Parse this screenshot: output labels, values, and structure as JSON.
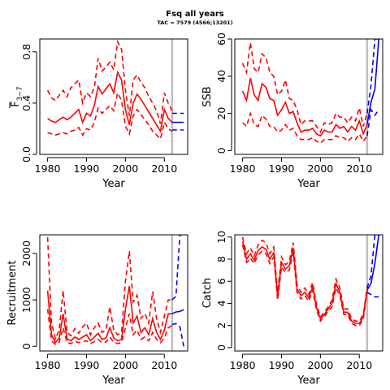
{
  "figure": {
    "title": "Fsq all years",
    "subtitle": "TAC = 7579 (4566;13201)"
  },
  "colors": {
    "hist": "#ff0000",
    "proj": "#0000ff",
    "vline": "#bebebe"
  },
  "assessment_year": 2012,
  "chart_data": [
    {
      "type": "line",
      "id": "fbar",
      "xlabel": "Year",
      "ylabel_main": "F",
      "ylabel_sub": "3−7",
      "xlim": [
        1978,
        2016
      ],
      "ylim": [
        0,
        0.9
      ],
      "xticks": [
        1980,
        1990,
        2000,
        2010
      ],
      "yticks": [
        0.0,
        0.4,
        0.8
      ],
      "ytick_labels": [
        "0.0",
        "0.4",
        "0.8"
      ],
      "years": [
        1980,
        1981,
        1982,
        1983,
        1984,
        1985,
        1986,
        1987,
        1988,
        1989,
        1990,
        1991,
        1992,
        1993,
        1994,
        1995,
        1996,
        1997,
        1998,
        1999,
        2000,
        2001,
        2002,
        2003,
        2004,
        2005,
        2006,
        2007,
        2008,
        2009,
        2010,
        2011,
        2012
      ],
      "median": [
        0.28,
        0.26,
        0.25,
        0.27,
        0.29,
        0.27,
        0.29,
        0.32,
        0.35,
        0.25,
        0.32,
        0.3,
        0.38,
        0.53,
        0.47,
        0.51,
        0.55,
        0.48,
        0.64,
        0.58,
        0.35,
        0.23,
        0.4,
        0.47,
        0.43,
        0.38,
        0.33,
        0.28,
        0.23,
        0.18,
        0.35,
        0.28,
        0.25
      ],
      "lower": [
        0.17,
        0.16,
        0.15,
        0.16,
        0.17,
        0.16,
        0.18,
        0.19,
        0.21,
        0.15,
        0.2,
        0.19,
        0.25,
        0.36,
        0.32,
        0.35,
        0.38,
        0.34,
        0.48,
        0.42,
        0.22,
        0.16,
        0.3,
        0.35,
        0.31,
        0.27,
        0.23,
        0.18,
        0.15,
        0.12,
        0.25,
        0.2,
        0.18
      ],
      "upper": [
        0.5,
        0.44,
        0.42,
        0.46,
        0.5,
        0.45,
        0.52,
        0.55,
        0.58,
        0.4,
        0.48,
        0.45,
        0.52,
        0.75,
        0.65,
        0.68,
        0.72,
        0.66,
        0.88,
        0.82,
        0.5,
        0.3,
        0.58,
        0.62,
        0.56,
        0.52,
        0.45,
        0.4,
        0.34,
        0.24,
        0.48,
        0.4,
        0.34
      ],
      "proj_years": [
        2012,
        2013,
        2014,
        2015
      ],
      "proj_median": [
        0.25,
        0.25,
        0.25,
        0.25
      ],
      "proj_lower": [
        0.19,
        0.19,
        0.19,
        0.19
      ],
      "proj_upper": [
        0.32,
        0.32,
        0.32,
        0.32
      ]
    },
    {
      "type": "line",
      "id": "ssb",
      "xlabel": "Year",
      "ylabel": "SSB",
      "xlim": [
        1978,
        2016
      ],
      "ylim": [
        -2,
        60
      ],
      "xticks": [
        1980,
        1990,
        2000,
        2010
      ],
      "yticks": [
        0,
        20,
        40,
        60
      ],
      "ytick_labels": [
        "0",
        "20",
        "40",
        "60"
      ],
      "years": [
        1980,
        1981,
        1982,
        1983,
        1984,
        1985,
        1986,
        1987,
        1988,
        1989,
        1990,
        1991,
        1992,
        1993,
        1994,
        1995,
        1996,
        1997,
        1998,
        1999,
        2000,
        2001,
        2002,
        2003,
        2004,
        2005,
        2006,
        2007,
        2008,
        2009,
        2010,
        2011,
        2012
      ],
      "median": [
        32,
        27,
        39,
        30,
        27,
        36,
        34,
        28,
        27,
        19,
        22,
        26,
        20,
        21,
        15,
        10,
        11,
        11,
        12,
        9,
        8,
        11,
        10,
        10,
        14,
        12,
        13,
        10,
        13,
        11,
        16,
        9,
        14
      ],
      "lower": [
        15,
        13,
        20,
        14,
        13,
        19,
        17,
        13,
        13,
        10,
        11,
        14,
        11,
        12,
        8,
        6,
        6,
        6,
        7,
        5,
        4,
        6,
        6,
        6,
        8,
        7,
        7,
        5,
        7,
        6,
        9,
        5,
        8
      ],
      "upper": [
        47,
        42,
        58,
        44,
        42,
        52,
        50,
        42,
        40,
        30,
        32,
        38,
        28,
        27,
        22,
        14,
        16,
        16,
        16,
        13,
        10,
        15,
        14,
        15,
        20,
        18,
        18,
        15,
        18,
        16,
        23,
        13,
        20
      ],
      "proj_years": [
        2012,
        2013,
        2014,
        2015
      ],
      "proj_median": [
        14,
        26,
        33,
        60
      ],
      "proj_lower": [
        8,
        22,
        19,
        22
      ],
      "proj_upper": [
        20,
        35,
        60,
        60
      ]
    },
    {
      "type": "line",
      "id": "recruitment",
      "xlabel": "Year",
      "ylabel": "Recruitment",
      "xlim": [
        1978,
        2016
      ],
      "ylim": [
        -100,
        2400
      ],
      "xticks": [
        1980,
        1990,
        2000,
        2010
      ],
      "yticks": [
        0,
        1000,
        2000
      ],
      "ytick_labels": [
        "0",
        "1000",
        "2000"
      ],
      "years": [
        1980,
        1981,
        1982,
        1983,
        1984,
        1985,
        1986,
        1987,
        1988,
        1989,
        1990,
        1991,
        1992,
        1993,
        1994,
        1995,
        1996,
        1997,
        1998,
        1999,
        2000,
        2001,
        2002,
        2003,
        2004,
        2005,
        2006,
        2007,
        2008,
        2009,
        2010,
        2011,
        2012
      ],
      "median": [
        1200,
        250,
        80,
        180,
        700,
        160,
        120,
        200,
        150,
        200,
        250,
        120,
        200,
        280,
        150,
        180,
        400,
        180,
        120,
        150,
        800,
        1300,
        500,
        650,
        300,
        400,
        250,
        600,
        300,
        150,
        350,
        700,
        700
      ],
      "lower": [
        800,
        120,
        40,
        100,
        400,
        80,
        60,
        110,
        80,
        100,
        120,
        60,
        100,
        150,
        80,
        90,
        200,
        90,
        60,
        80,
        400,
        700,
        250,
        350,
        150,
        200,
        120,
        300,
        150,
        80,
        180,
        400,
        450
      ],
      "upper": [
        2350,
        500,
        160,
        350,
        1200,
        300,
        230,
        380,
        280,
        420,
        500,
        250,
        400,
        500,
        300,
        350,
        850,
        350,
        250,
        300,
        1400,
        2050,
        950,
        1100,
        600,
        700,
        500,
        1180,
        600,
        300,
        650,
        1000,
        1000
      ],
      "proj_years": [
        2012,
        2013,
        2014,
        2015
      ],
      "proj_median": [
        700,
        740,
        750,
        790
      ],
      "proj_lower": [
        470,
        490,
        420,
        0
      ],
      "proj_upper": [
        1000,
        1080,
        2400,
        2400
      ]
    },
    {
      "type": "line",
      "id": "catch",
      "xlabel": "Year",
      "ylabel": "Catch",
      "xlim": [
        1978,
        2016
      ],
      "ylim": [
        -0.3,
        10.2
      ],
      "xticks": [
        1980,
        1990,
        2000,
        2010
      ],
      "yticks": [
        0,
        2,
        4,
        6,
        8,
        10
      ],
      "ytick_labels": [
        "0",
        "2",
        "4",
        "6",
        "8",
        "10"
      ],
      "years": [
        1980,
        1981,
        1982,
        1983,
        1984,
        1985,
        1986,
        1987,
        1988,
        1989,
        1990,
        1991,
        1992,
        1993,
        1994,
        1995,
        1996,
        1997,
        1998,
        1999,
        2000,
        2001,
        2002,
        2003,
        2004,
        2005,
        2006,
        2007,
        2008,
        2009,
        2010,
        2011,
        2012
      ],
      "median": [
        9.6,
        8.0,
        8.5,
        7.9,
        8.8,
        9.1,
        8.9,
        8.0,
        8.6,
        4.6,
        7.7,
        7.1,
        7.4,
        9.0,
        5.3,
        4.7,
        5.0,
        4.5,
        5.5,
        3.6,
        2.6,
        3.0,
        3.5,
        4.0,
        5.8,
        5.0,
        3.2,
        3.2,
        2.4,
        2.2,
        2.2,
        2.8,
        5.2
      ],
      "lower": [
        9.3,
        7.7,
        8.1,
        7.6,
        8.4,
        8.7,
        8.5,
        7.6,
        8.2,
        4.3,
        7.3,
        6.8,
        7.0,
        8.6,
        5.0,
        4.4,
        4.7,
        4.2,
        5.2,
        3.4,
        2.4,
        2.8,
        3.3,
        3.7,
        5.4,
        4.7,
        3.0,
        3.0,
        2.2,
        2.0,
        2.0,
        2.6,
        5.0
      ],
      "upper": [
        10.0,
        8.5,
        9.0,
        8.3,
        9.3,
        9.7,
        9.5,
        8.5,
        9.1,
        5.0,
        8.2,
        7.5,
        7.8,
        9.5,
        5.7,
        5.0,
        5.4,
        4.8,
        5.9,
        3.9,
        2.8,
        3.2,
        3.7,
        4.3,
        6.2,
        5.4,
        3.5,
        3.5,
        2.6,
        2.4,
        2.4,
        3.0,
        5.4
      ],
      "proj_years": [
        2012,
        2013,
        2014,
        2015
      ],
      "proj_median": [
        5.2,
        5.8,
        7.6,
        10.2
      ],
      "proj_lower": [
        5.0,
        4.8,
        4.6,
        4.6
      ],
      "proj_upper": [
        5.4,
        6.5,
        10.2,
        10.2
      ]
    }
  ]
}
